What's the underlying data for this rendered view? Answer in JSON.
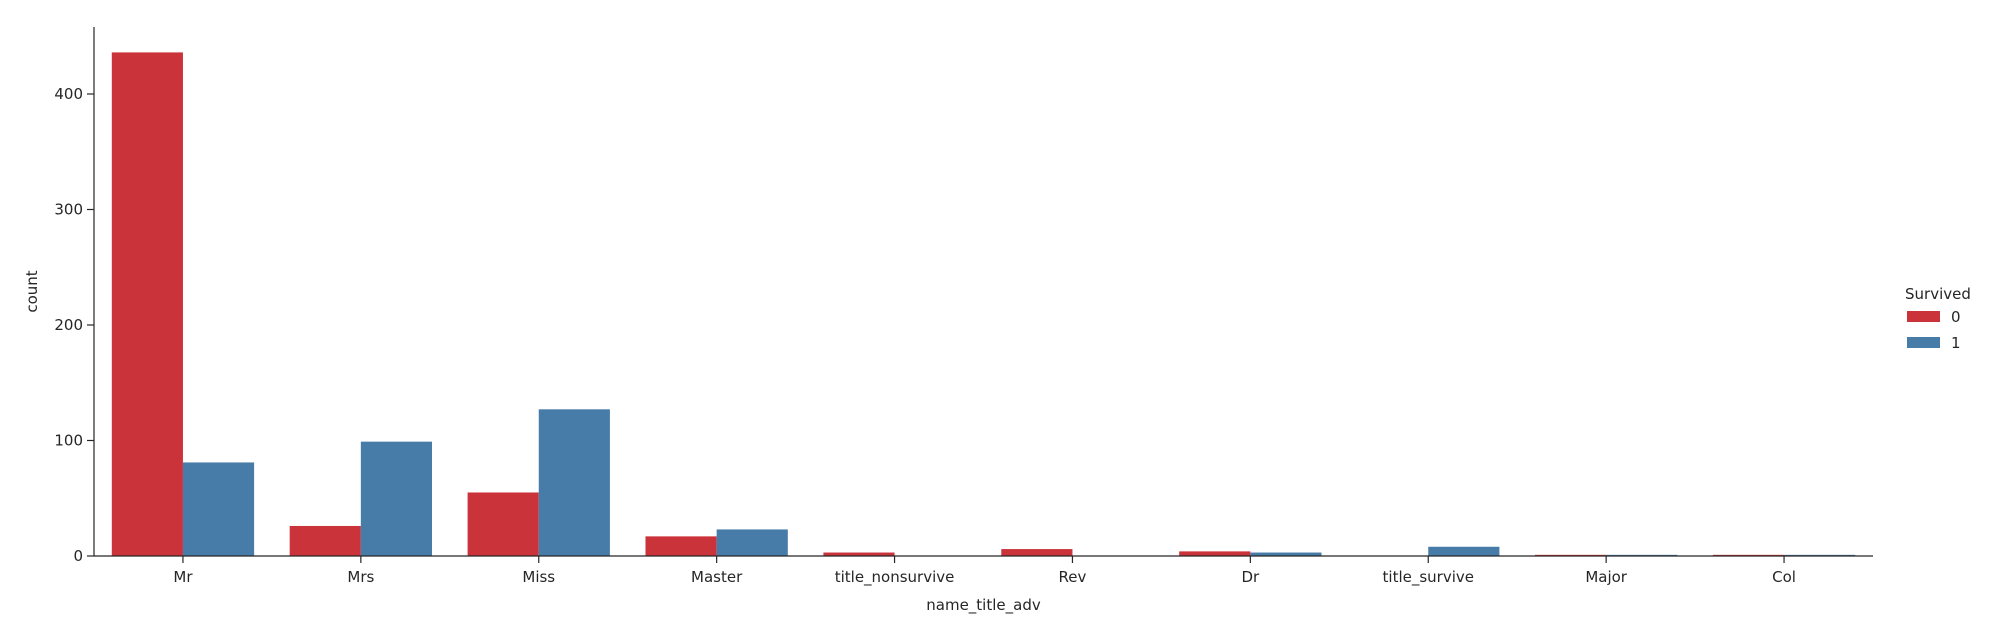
{
  "chart_data": {
    "type": "bar",
    "categories": [
      "Mr",
      "Mrs",
      "Miss",
      "Master",
      "title_nonsurvive",
      "Rev",
      "Dr",
      "title_survive",
      "Major",
      "Col"
    ],
    "series": [
      {
        "name": "0",
        "color": "#cb333b",
        "values": [
          436,
          26,
          55,
          17,
          3,
          6,
          4,
          0,
          1,
          1
        ]
      },
      {
        "name": "1",
        "color": "#477ca8",
        "values": [
          81,
          99,
          127,
          23,
          0,
          0,
          3,
          8,
          1,
          1
        ]
      }
    ],
    "xlabel": "name_title_adv",
    "ylabel": "count",
    "ylim": [
      0,
      458
    ],
    "yticks": [
      0,
      100,
      200,
      300,
      400
    ],
    "grid": false,
    "legend": {
      "title": "Survived",
      "placement": "right"
    }
  }
}
